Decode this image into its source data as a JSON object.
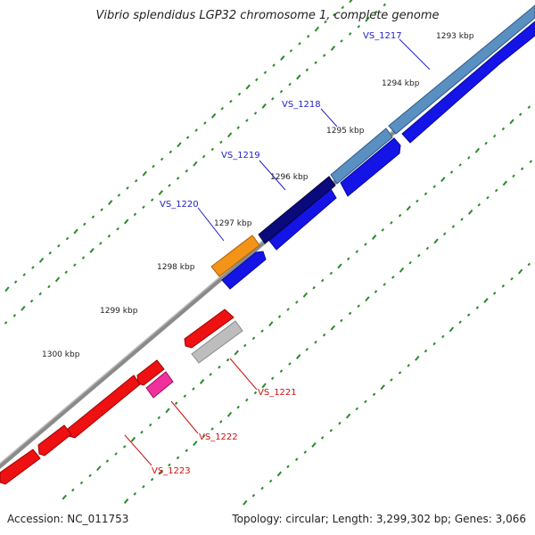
{
  "title": "Vibrio splendidus LGP32 chromosome 1, complete genome",
  "footer": {
    "accession": "Accession: NC_011753",
    "summary": "Topology: circular; Length: 3,299,302 bp; Genes: 3,066"
  },
  "ticks": [
    "1293 kbp",
    "1294 kbp",
    "1295 kbp",
    "1296 kbp",
    "1297 kbp",
    "1298 kbp",
    "1299 kbp",
    "1300 kbp"
  ],
  "genes_forward": [
    "VS_1217",
    "VS_1218",
    "VS_1219",
    "VS_1220"
  ],
  "genes_reverse": [
    "VS_1221",
    "VS_1222",
    "VS_1223"
  ],
  "colors": {
    "forward_label": "#2020cc",
    "reverse_label": "#cc1010",
    "tick_green": "#2a8a2a",
    "backbone": "#7a7a7a",
    "cds_blue": "#1010e0",
    "gene_steel": "#4f86b8",
    "gene_navy": "#0a0a78",
    "gene_orange": "#f08c10",
    "cds_red": "#ee1111",
    "gene_gray": "#b8b8b8",
    "gene_pink": "#ee2aa0"
  }
}
